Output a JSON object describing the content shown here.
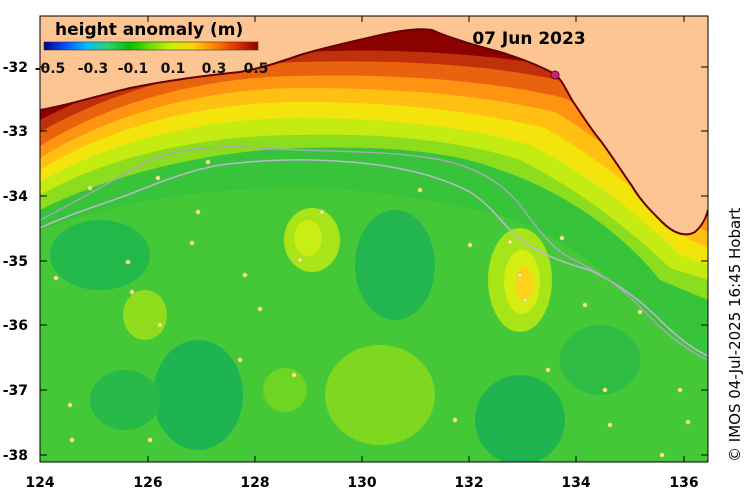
{
  "title": "height anomaly (m)",
  "date": "07 Jun 2023",
  "credit": "© IMOS 04-Jul-2025 16:45 Hobart",
  "colorbar": {
    "ticks": [
      "-0.5",
      "-0.3",
      "-0.1",
      "0.1",
      "0.3",
      "0.5"
    ],
    "range": [
      -0.5,
      0.5
    ],
    "colors": [
      "#00008f",
      "#0050ff",
      "#00c0ff",
      "#30d070",
      "#00c000",
      "#6ee000",
      "#d0f000",
      "#ffd000",
      "#ff8000",
      "#e03000",
      "#900000"
    ]
  },
  "axes": {
    "lon_range": [
      124,
      136.5
    ],
    "lat_range": [
      -38.1,
      -31.3
    ],
    "x_ticks": [
      "124",
      "126",
      "128",
      "130",
      "132",
      "134",
      "136"
    ],
    "y_ticks": [
      "-32",
      "-33",
      "-34",
      "-35",
      "-36",
      "-37",
      "-38"
    ]
  },
  "colors": {
    "land": "#fdc592",
    "coast_high": "#8b0000",
    "ocean_base": "#35c235"
  }
}
